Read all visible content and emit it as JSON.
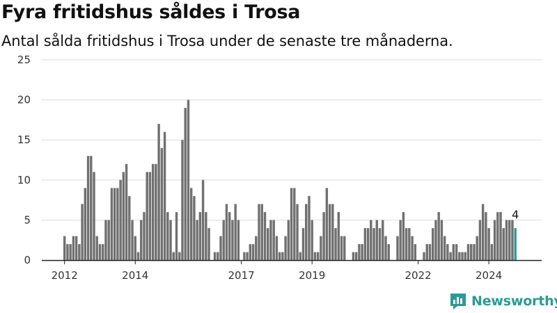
{
  "header": {
    "title": "Fyra fritidshus såldes i Trosa",
    "subtitle": "Antal sålda fritidshus i Trosa under de senaste tre månaderna."
  },
  "logo": {
    "text": "Newsworthy",
    "icon": "bar-chart-icon"
  },
  "colors": {
    "bar": "#707070",
    "highlight": "#2b9a96",
    "grid": "#dcdcdc",
    "axis": "#222222"
  },
  "chart_data": {
    "type": "bar",
    "title": "Fyra fritidshus såldes i Trosa",
    "subtitle": "Antal sålda fritidshus i Trosa under de senaste tre månaderna.",
    "ylim": [
      0,
      25
    ],
    "yticks": [
      0,
      5,
      10,
      15,
      20,
      25
    ],
    "x_start": "2012-01",
    "frequency": "monthly",
    "xtick_labels": [
      {
        "label": "2012",
        "index": 0
      },
      {
        "label": "2014",
        "index": 24
      },
      {
        "label": "2017",
        "index": 60
      },
      {
        "label": "2019",
        "index": 84
      },
      {
        "label": "2022",
        "index": 120
      },
      {
        "label": "2024",
        "index": 144
      }
    ],
    "grid": true,
    "legend": "none",
    "values": [
      3,
      2,
      2,
      3,
      3,
      2,
      7,
      9,
      13,
      13,
      11,
      3,
      2,
      2,
      5,
      5,
      9,
      9,
      9,
      10,
      11,
      12,
      8,
      5,
      3,
      1,
      5,
      6,
      11,
      11,
      12,
      12,
      17,
      14,
      16,
      6,
      5,
      1,
      6,
      1,
      15,
      19,
      20,
      9,
      8,
      5,
      6,
      10,
      6,
      4,
      0,
      1,
      1,
      3,
      5,
      7,
      6,
      5,
      7,
      5,
      0,
      1,
      1,
      2,
      2,
      3,
      7,
      7,
      6,
      4,
      5,
      5,
      3,
      1,
      1,
      3,
      5,
      9,
      9,
      7,
      1,
      4,
      7,
      8,
      5,
      1,
      1,
      3,
      6,
      9,
      7,
      7,
      4,
      6,
      3,
      3,
      0,
      0,
      1,
      1,
      2,
      2,
      4,
      4,
      5,
      4,
      5,
      4,
      5,
      3,
      2,
      0,
      0,
      3,
      5,
      6,
      4,
      4,
      3,
      2,
      0,
      0,
      1,
      2,
      2,
      4,
      5,
      6,
      5,
      3,
      2,
      1,
      2,
      2,
      1,
      1,
      1,
      2,
      2,
      2,
      3,
      5,
      7,
      6,
      4,
      2,
      5,
      6,
      6,
      4,
      5,
      5,
      5,
      4
    ],
    "highlight_last": true,
    "last_value_label": "4"
  }
}
